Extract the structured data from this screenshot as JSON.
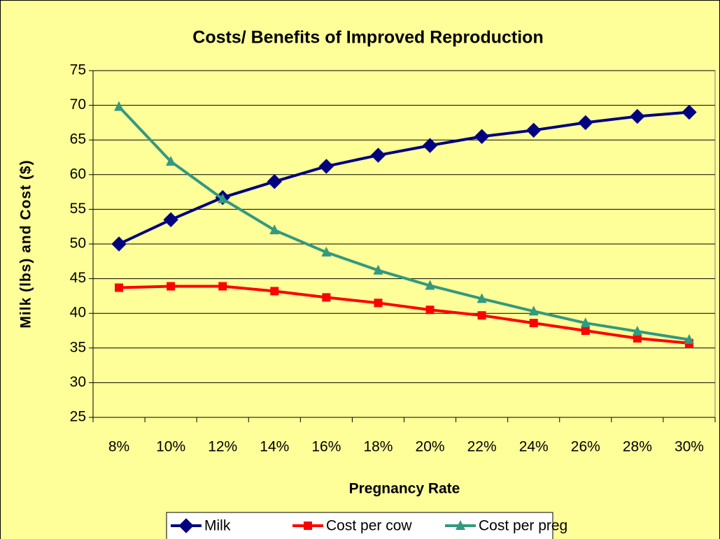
{
  "chart_data": {
    "type": "line",
    "title": "Costs/ Benefits of Improved Reproduction",
    "x_label": "Pregnancy Rate",
    "y_label": "Milk (lbs) and Cost ($)",
    "categories": [
      "8%",
      "10%",
      "12%",
      "14%",
      "16%",
      "18%",
      "20%",
      "22%",
      "24%",
      "26%",
      "28%",
      "30%"
    ],
    "series": [
      {
        "name": "Milk",
        "color": "#000080",
        "marker": "diamond",
        "values": [
          50.0,
          53.5,
          56.7,
          59.0,
          61.2,
          62.8,
          64.2,
          65.5,
          66.4,
          67.5,
          68.4,
          69.0
        ]
      },
      {
        "name": "Cost per cow",
        "color": "#ff0000",
        "marker": "square",
        "values": [
          43.7,
          43.9,
          43.9,
          43.2,
          42.3,
          41.5,
          40.5,
          39.7,
          38.6,
          37.5,
          36.4,
          35.7
        ]
      },
      {
        "name": "Cost per preg",
        "color": "#339980",
        "marker": "triangle",
        "values": [
          69.8,
          61.9,
          56.5,
          52.0,
          48.8,
          46.2,
          44.0,
          42.1,
          40.3,
          38.6,
          37.4,
          36.2
        ]
      }
    ],
    "ylim": [
      25,
      75
    ],
    "yticks": [
      25,
      30,
      35,
      40,
      45,
      50,
      55,
      60,
      65,
      70,
      75
    ],
    "grid": true,
    "legend": "bottom",
    "background": "#ffff99"
  }
}
